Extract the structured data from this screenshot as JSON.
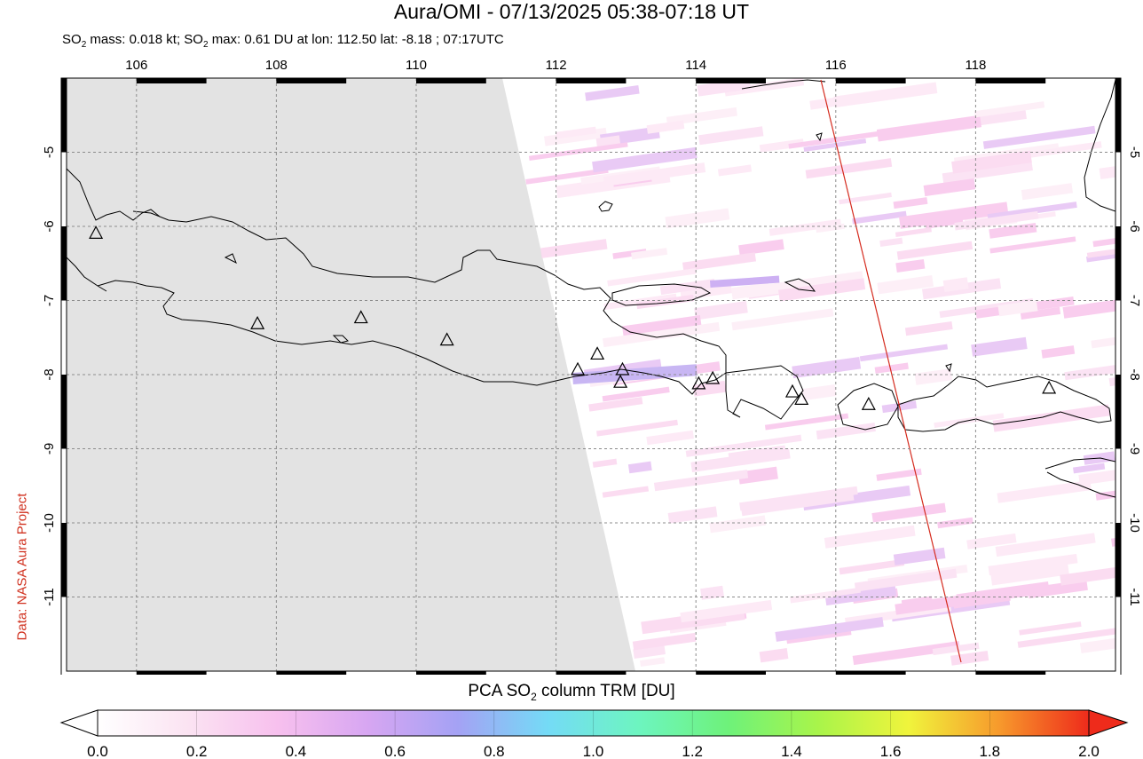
{
  "title": "Aura/OMI - 07/13/2025 05:38-07:18 UT",
  "subtitle": {
    "pre": "SO",
    "sub": "2",
    "mid": " mass: 0.018 kt; SO",
    "sub2": "2",
    "post": " max: 0.61 DU at lon: 112.50 lat: -8.18 ; 07:17UTC"
  },
  "credit": "Data: NASA Aura Project",
  "map": {
    "lon_range": [
      105.0,
      120.0
    ],
    "lat_range": [
      -12.0,
      -4.0
    ],
    "lon_ticks": [
      "106",
      "108",
      "110",
      "112",
      "114",
      "116",
      "118"
    ],
    "lat_ticks": [
      "-5",
      "-6",
      "-7",
      "-8",
      "-9",
      "-10",
      "-11"
    ],
    "no_data_color": "#e3e3e3",
    "coast_color": "#000000",
    "orbit_track_color": "#d52b1e",
    "volcano_marker": "triangle-icon",
    "volcanoes": [
      {
        "lon": 105.42,
        "lat": -6.1
      },
      {
        "lon": 107.73,
        "lat": -7.32
      },
      {
        "lon": 109.21,
        "lat": -7.24
      },
      {
        "lon": 110.44,
        "lat": -7.54
      },
      {
        "lon": 112.31,
        "lat": -7.94
      },
      {
        "lon": 112.59,
        "lat": -7.73
      },
      {
        "lon": 112.92,
        "lat": -8.11
      },
      {
        "lon": 112.95,
        "lat": -7.94
      },
      {
        "lon": 114.04,
        "lat": -8.13
      },
      {
        "lon": 114.24,
        "lat": -8.06
      },
      {
        "lon": 115.38,
        "lat": -8.24
      },
      {
        "lon": 115.51,
        "lat": -8.34
      },
      {
        "lon": 116.47,
        "lat": -8.41
      },
      {
        "lon": 119.05,
        "lat": -8.19
      }
    ]
  },
  "colorbar": {
    "title_pre": "PCA SO",
    "title_sub": "2",
    "title_post": " column TRM [DU]",
    "ticks": [
      "0.0",
      "0.2",
      "0.4",
      "0.6",
      "0.8",
      "1.0",
      "1.2",
      "1.4",
      "1.6",
      "1.8",
      "2.0"
    ],
    "colors": [
      "#ffffff",
      "#fbe3f2",
      "#f7c0ee",
      "#d7a6f2",
      "#a4a2f4",
      "#74dbf6",
      "#6df5c0",
      "#6ef27a",
      "#a9f44a",
      "#f0f43c",
      "#f79a2c",
      "#ee2b1b"
    ]
  }
}
